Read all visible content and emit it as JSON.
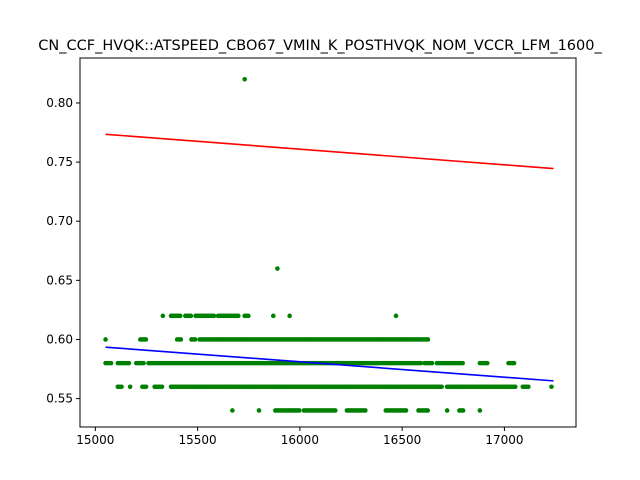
{
  "chart_data": {
    "type": "scatter",
    "title": "CN_CCF_HVQK::ATSPEED_CBO67_VMIN_K_POSTHVQK_NOM_VCCR_LFM_1600_",
    "xlabel": "",
    "ylabel": "",
    "xlim": [
      14925,
      17350
    ],
    "ylim": [
      0.526,
      0.838
    ],
    "x_ticks": [
      15000,
      15500,
      16000,
      16500,
      17000
    ],
    "y_ticks": [
      0.55,
      0.6,
      0.65,
      0.7,
      0.75,
      0.8
    ],
    "x_tick_labels": [
      "15000",
      "15500",
      "16000",
      "16500",
      "17000"
    ],
    "y_tick_labels": [
      "0.55",
      "0.60",
      "0.65",
      "0.70",
      "0.75",
      "0.80"
    ],
    "grid": false,
    "colors": {
      "points": "#008000",
      "upper_line": "#ff0000",
      "lower_line": "#0000ff"
    },
    "point_bands": [
      {
        "y": 0.54,
        "x_ranges": [
          [
            15670,
            15670
          ],
          [
            15800,
            15800
          ],
          [
            15880,
            16000
          ],
          [
            16020,
            16180
          ],
          [
            16230,
            16320
          ],
          [
            16420,
            16520
          ],
          [
            16580,
            16630
          ],
          [
            16720,
            16720
          ],
          [
            16780,
            16800
          ],
          [
            16880,
            16880
          ]
        ]
      },
      {
        "y": 0.56,
        "x_ranges": [
          [
            15110,
            15130
          ],
          [
            15170,
            15170
          ],
          [
            15230,
            15250
          ],
          [
            15290,
            15330
          ],
          [
            15370,
            16700
          ],
          [
            16720,
            17060
          ],
          [
            17090,
            17120
          ],
          [
            17230,
            17230
          ]
        ]
      },
      {
        "y": 0.58,
        "x_ranges": [
          [
            15050,
            15080
          ],
          [
            15110,
            15170
          ],
          [
            15200,
            15240
          ],
          [
            15260,
            16600
          ],
          [
            16610,
            16650
          ],
          [
            16670,
            16800
          ],
          [
            16880,
            16920
          ],
          [
            17020,
            17050
          ]
        ]
      },
      {
        "y": 0.6,
        "x_ranges": [
          [
            15050,
            15050
          ],
          [
            15220,
            15250
          ],
          [
            15400,
            15420
          ],
          [
            15470,
            15490
          ],
          [
            15510,
            16630
          ]
        ]
      },
      {
        "y": 0.62,
        "x_ranges": [
          [
            15330,
            15330
          ],
          [
            15370,
            15420
          ],
          [
            15440,
            15470
          ],
          [
            15490,
            15580
          ],
          [
            15600,
            15700
          ],
          [
            15730,
            15750
          ],
          [
            15870,
            15870
          ],
          [
            15950,
            15950
          ],
          [
            16470,
            16470
          ]
        ]
      }
    ],
    "outliers": [
      {
        "x": 15730,
        "y": 0.82
      },
      {
        "x": 15890,
        "y": 0.66
      }
    ],
    "series": [
      {
        "type": "line",
        "x": [
          15050,
          17240
        ],
        "y": [
          0.7735,
          0.7445
        ]
      },
      {
        "type": "line",
        "x": [
          15050,
          17240
        ],
        "y": [
          0.5935,
          0.565
        ]
      }
    ]
  }
}
